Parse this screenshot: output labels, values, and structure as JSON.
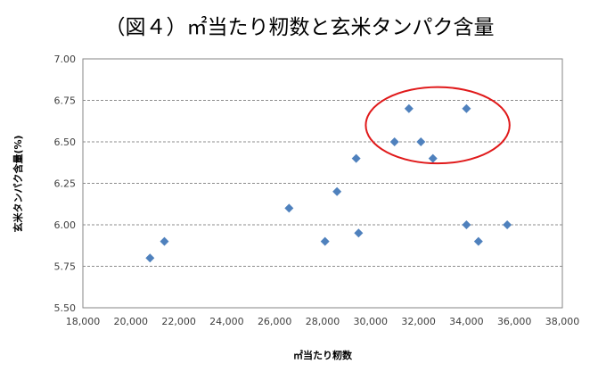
{
  "chart_data": {
    "type": "scatter",
    "title": "（図４）㎡当たり籾数と玄米タンパク含量",
    "xlabel": "㎡当たり籾数",
    "ylabel": "玄米タンパク含量(%)",
    "xlim": [
      18000,
      38000
    ],
    "ylim": [
      5.5,
      7.0
    ],
    "x_ticks": [
      18000,
      20000,
      22000,
      24000,
      26000,
      28000,
      30000,
      32000,
      34000,
      36000,
      38000
    ],
    "x_tick_labels": [
      "18,000",
      "20,000",
      "22,000",
      "24,000",
      "26,000",
      "28,000",
      "30,000",
      "32,000",
      "34,000",
      "36,000",
      "38,000"
    ],
    "y_ticks": [
      5.5,
      5.75,
      6.0,
      6.25,
      6.5,
      6.75,
      7.0
    ],
    "y_tick_labels": [
      "5.50",
      "5.75",
      "6.00",
      "6.25",
      "6.50",
      "6.75",
      "7.00"
    ],
    "grid": "horizontal dashed",
    "series": [
      {
        "marker": "diamond",
        "color": "#4f81bd",
        "points": [
          {
            "x": 20800,
            "y": 5.8
          },
          {
            "x": 21400,
            "y": 5.9
          },
          {
            "x": 26600,
            "y": 6.1
          },
          {
            "x": 28100,
            "y": 5.9
          },
          {
            "x": 28600,
            "y": 6.2
          },
          {
            "x": 29400,
            "y": 6.4
          },
          {
            "x": 29500,
            "y": 5.95
          },
          {
            "x": 31000,
            "y": 6.5
          },
          {
            "x": 31600,
            "y": 6.7
          },
          {
            "x": 32100,
            "y": 6.5
          },
          {
            "x": 32600,
            "y": 6.4
          },
          {
            "x": 34000,
            "y": 6.7
          },
          {
            "x": 34000,
            "y": 6.0
          },
          {
            "x": 34500,
            "y": 5.9
          },
          {
            "x": 35700,
            "y": 6.0
          }
        ]
      }
    ],
    "annotations": [
      {
        "shape": "ellipse",
        "color": "#e0191a",
        "cx": 32800,
        "cy": 6.6,
        "rx": 3000,
        "ry": 0.23
      }
    ]
  }
}
